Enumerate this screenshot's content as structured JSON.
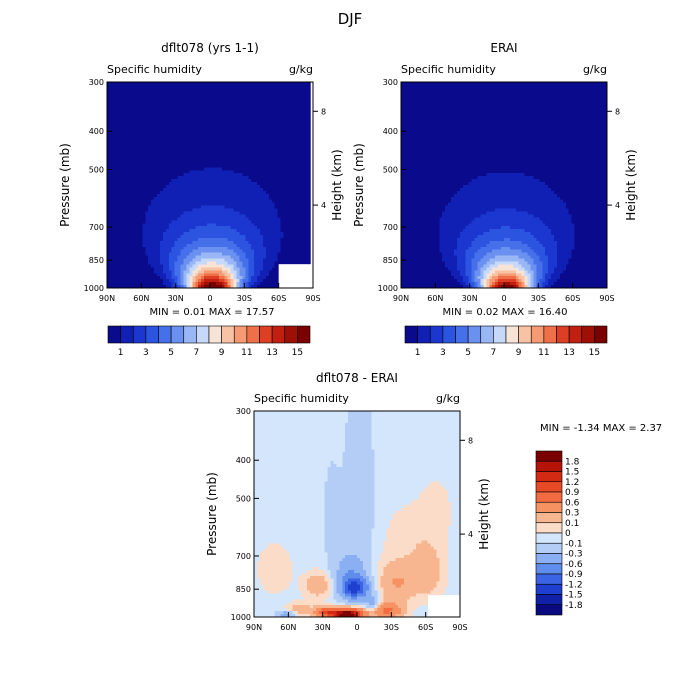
{
  "figure": {
    "title": "DJF"
  },
  "chart_data": [
    {
      "type": "heatmap",
      "title": "dflt078 (yrs 1-1)",
      "variable_label": "Specific humidity",
      "units_label": "g/kg",
      "ylabel": "Pressure (mb)",
      "y2label": "Height (km)",
      "x_tick_labels": [
        "90N",
        "60N",
        "30N",
        "0",
        "30S",
        "60S",
        "90S"
      ],
      "x_ticks": [
        90,
        60,
        30,
        0,
        -30,
        -60,
        -90
      ],
      "xlim": [
        90,
        -90
      ],
      "y_tick_labels": [
        "300",
        "400",
        "500",
        "700",
        "850",
        "1000"
      ],
      "y_ticks": [
        300,
        400,
        500,
        700,
        850,
        1000
      ],
      "ylim": [
        300,
        1000
      ],
      "yscale": "log",
      "y2_tick_labels": [
        "8",
        "4"
      ],
      "y2_ticks_pressure": [
        356,
        616
      ],
      "stats_text": "MIN =   0.01   MAX =  17.57",
      "colorbar_tick_labels": [
        "1",
        "3",
        "5",
        "7",
        "9",
        "11",
        "13",
        "15"
      ],
      "colorbar_levels": [
        1,
        2,
        3,
        4,
        5,
        6,
        7,
        8,
        9,
        10,
        11,
        12,
        13,
        14,
        15
      ],
      "colorbar_colors": [
        "#0a0a8c",
        "#1020b4",
        "#1c37cf",
        "#2b55e0",
        "#4670ea",
        "#6b91f0",
        "#99b7f5",
        "#c7d9fb",
        "#f7e4d6",
        "#f8c2a4",
        "#f59a72",
        "#ef6f49",
        "#dd3f25",
        "#c11f10",
        "#9e0f06",
        "#7a0000"
      ],
      "field": {
        "peak": 17.57,
        "center_lat": -2,
        "core_halfwidth": 18,
        "decay_pressure": 175,
        "background": 0.01
      },
      "masked_regions": [
        {
          "lat_from": -60,
          "lat_to": -90,
          "p_from": 870,
          "p_to": 1000
        },
        {
          "lat_from": -88,
          "lat_to": -90,
          "p_from": 300,
          "p_to": 1000
        }
      ]
    },
    {
      "type": "heatmap",
      "title": "ERAI",
      "variable_label": "Specific humidity",
      "units_label": "g/kg",
      "ylabel": "Pressure (mb)",
      "y2label": "Height (km)",
      "x_tick_labels": [
        "90N",
        "60N",
        "30N",
        "0",
        "30S",
        "60S",
        "90S"
      ],
      "x_ticks": [
        90,
        60,
        30,
        0,
        -30,
        -60,
        -90
      ],
      "xlim": [
        90,
        -90
      ],
      "y_tick_labels": [
        "300",
        "400",
        "500",
        "700",
        "850",
        "1000"
      ],
      "y_ticks": [
        300,
        400,
        500,
        700,
        850,
        1000
      ],
      "ylim": [
        300,
        1000
      ],
      "yscale": "log",
      "y2_tick_labels": [
        "8",
        "4"
      ],
      "y2_ticks_pressure": [
        356,
        616
      ],
      "stats_text": "MIN =   0.02   MAX =  16.40",
      "colorbar_tick_labels": [
        "1",
        "3",
        "5",
        "7",
        "9",
        "11",
        "13",
        "15"
      ],
      "colorbar_levels": [
        1,
        2,
        3,
        4,
        5,
        6,
        7,
        8,
        9,
        10,
        11,
        12,
        13,
        14,
        15
      ],
      "colorbar_colors": [
        "#0a0a8c",
        "#1020b4",
        "#1c37cf",
        "#2b55e0",
        "#4670ea",
        "#6b91f0",
        "#99b7f5",
        "#c7d9fb",
        "#f7e4d6",
        "#f8c2a4",
        "#f59a72",
        "#ef6f49",
        "#dd3f25",
        "#c11f10",
        "#9e0f06",
        "#7a0000"
      ],
      "field": {
        "peak": 16.4,
        "center_lat": -2,
        "core_halfwidth": 18,
        "decay_pressure": 175,
        "background": 0.02
      },
      "masked_regions": []
    },
    {
      "type": "heatmap",
      "title": "dflt078 - ERAI",
      "variable_label": "Specific humidity",
      "units_label": "g/kg",
      "ylabel": "Pressure (mb)",
      "y2label": "Height (km)",
      "x_tick_labels": [
        "90N",
        "60N",
        "30N",
        "0",
        "30S",
        "60S",
        "90S"
      ],
      "x_ticks": [
        90,
        60,
        30,
        0,
        -30,
        -60,
        -90
      ],
      "xlim": [
        90,
        -90
      ],
      "y_tick_labels": [
        "300",
        "400",
        "500",
        "700",
        "850",
        "1000"
      ],
      "y_ticks": [
        300,
        400,
        500,
        700,
        850,
        1000
      ],
      "ylim": [
        300,
        1000
      ],
      "yscale": "log",
      "y2_tick_labels": [
        "8",
        "4"
      ],
      "y2_ticks_pressure": [
        356,
        616
      ],
      "stats_text": "MIN =   -1.34   MAX =   2.37",
      "colorbar_tick_labels": [
        "1.8",
        "1.5",
        "1.2",
        "0.9",
        "0.6",
        "0.3",
        "0.1",
        "0",
        "-0.1",
        "-0.3",
        "-0.6",
        "-0.9",
        "-1.2",
        "-1.5",
        "-1.8"
      ],
      "colorbar_levels": [
        1.8,
        1.5,
        1.2,
        0.9,
        0.6,
        0.3,
        0.1,
        0,
        -0.1,
        -0.3,
        -0.6,
        -0.9,
        -1.2,
        -1.5,
        -1.8
      ],
      "colorbar_colors": [
        "#7a0000",
        "#b51208",
        "#d32a14",
        "#e94a26",
        "#f36b40",
        "#f69162",
        "#f8b690",
        "#fbdcc8",
        "#d4e6fb",
        "#b3cdf7",
        "#8aaff2",
        "#5f8ced",
        "#3a64e3",
        "#1f3fd0",
        "#1020a8",
        "#0a0a80"
      ],
      "anomalies": [
        {
          "lat": -2,
          "p": 360,
          "lat_w": 10,
          "p_w": 110,
          "amp": -0.15
        },
        {
          "lat": 0,
          "p": 560,
          "lat_w": 14,
          "p_w": 150,
          "amp": -0.22
        },
        {
          "lat": 2,
          "p": 845,
          "lat_w": 12,
          "p_w": 55,
          "amp": -1.3
        },
        {
          "lat": 6,
          "p": 760,
          "lat_w": 14,
          "p_w": 70,
          "amp": -0.4
        },
        {
          "lat": 22,
          "p": 560,
          "lat_w": 6,
          "p_w": 130,
          "amp": -0.18
        },
        {
          "lat": -35,
          "p": 820,
          "lat_w": 16,
          "p_w": 90,
          "amp": 0.35
        },
        {
          "lat": -62,
          "p": 780,
          "lat_w": 14,
          "p_w": 120,
          "amp": 0.22
        },
        {
          "lat": -48,
          "p": 640,
          "lat_w": 30,
          "p_w": 140,
          "amp": 0.1
        },
        {
          "lat": -70,
          "p": 520,
          "lat_w": 14,
          "p_w": 90,
          "amp": 0.07
        },
        {
          "lat": 72,
          "p": 760,
          "lat_w": 16,
          "p_w": 120,
          "amp": 0.12
        },
        {
          "lat": 34,
          "p": 830,
          "lat_w": 12,
          "p_w": 60,
          "amp": 0.3
        },
        {
          "lat": 8,
          "p": 985,
          "lat_w": 12,
          "p_w": 28,
          "amp": 2.3
        },
        {
          "lat": 26,
          "p": 975,
          "lat_w": 10,
          "p_w": 30,
          "amp": 1.0
        },
        {
          "lat": -26,
          "p": 965,
          "lat_w": 14,
          "p_w": 45,
          "amp": 0.7
        },
        {
          "lat": 50,
          "p": 960,
          "lat_w": 12,
          "p_w": 40,
          "amp": 0.25
        },
        {
          "lat": -14,
          "p": 925,
          "lat_w": 6,
          "p_w": 40,
          "amp": -0.5
        },
        {
          "lat": 62,
          "p": 985,
          "lat_w": 8,
          "p_w": 20,
          "amp": -0.45
        }
      ],
      "masked_regions": [
        {
          "lat_from": -62,
          "lat_to": -90,
          "p_from": 880,
          "p_to": 1000
        }
      ]
    }
  ]
}
